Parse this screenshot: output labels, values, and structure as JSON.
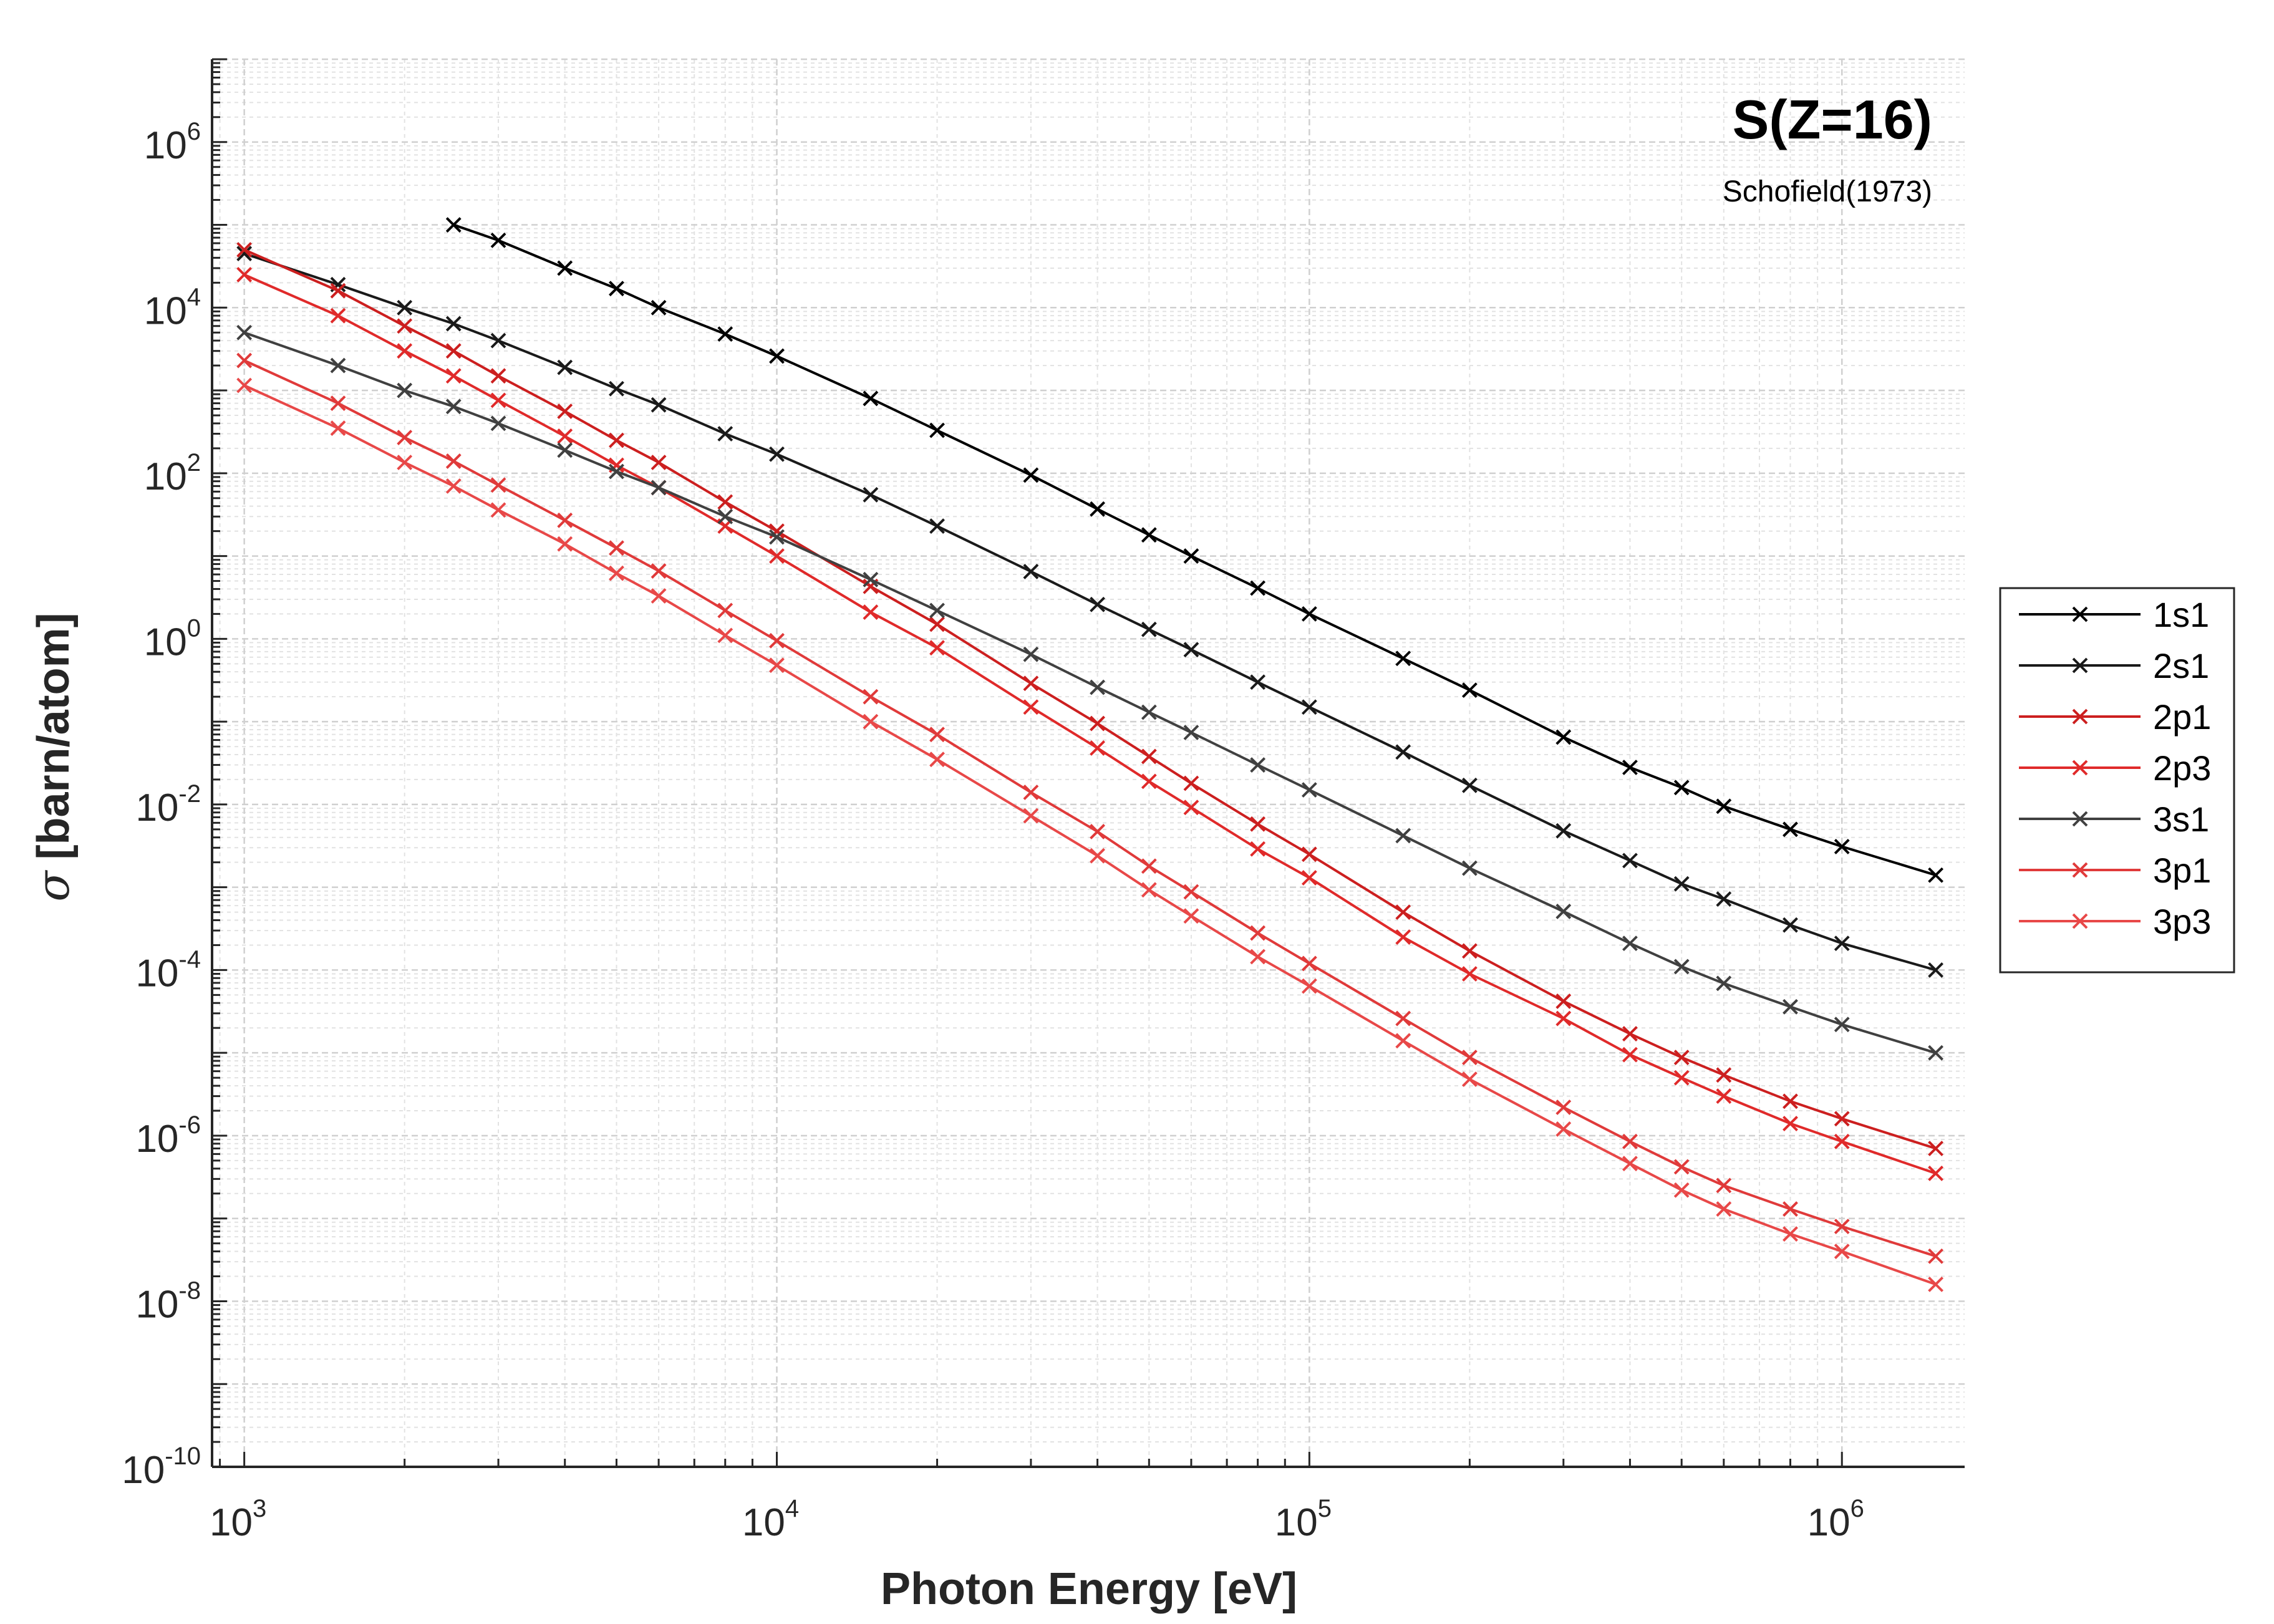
{
  "chart_data": {
    "type": "line",
    "title": "S(Z=16)",
    "subtitle": "Schofield(1973)",
    "xlabel": "Photon Energy [eV]",
    "ylabel_symbol": "σ",
    "ylabel": "[barn/atom]",
    "x_scale": "log",
    "y_scale": "log",
    "xlim": [
      870,
      1700000
    ],
    "ylim": [
      1e-10,
      10000000.0
    ],
    "grid": true,
    "marker": "x",
    "legend_position": "outside-right",
    "x_ticks": [
      {
        "base": "10",
        "exp": "3",
        "value": 1000
      },
      {
        "base": "10",
        "exp": "4",
        "value": 10000
      },
      {
        "base": "10",
        "exp": "5",
        "value": 100000
      },
      {
        "base": "10",
        "exp": "6",
        "value": 1000000
      }
    ],
    "y_ticks": [
      {
        "base": "10",
        "exp": "-10",
        "value": 1e-10
      },
      {
        "base": "10",
        "exp": "-8",
        "value": 1e-08
      },
      {
        "base": "10",
        "exp": "-6",
        "value": 1e-06
      },
      {
        "base": "10",
        "exp": "-4",
        "value": 0.0001
      },
      {
        "base": "10",
        "exp": "-2",
        "value": 0.01
      },
      {
        "base": "10",
        "exp": "0",
        "value": 1
      },
      {
        "base": "10",
        "exp": "2",
        "value": 100
      },
      {
        "base": "10",
        "exp": "4",
        "value": 10000
      },
      {
        "base": "10",
        "exp": "6",
        "value": 1000000
      }
    ],
    "series": [
      {
        "name": "1s1",
        "color": "#000000",
        "x": [
          2472,
          3000,
          4000,
          5000,
          6000,
          8000,
          10000,
          15000,
          20000,
          30000,
          40000,
          50000,
          60000,
          80000,
          100000,
          150000,
          200000,
          300000,
          400000,
          500000,
          600000,
          800000,
          1000000,
          1500000
        ],
        "y": [
          100000,
          65000,
          30000,
          17000,
          10000,
          4800,
          2600,
          800,
          330,
          95,
          37,
          18,
          10,
          4.1,
          2.0,
          0.58,
          0.24,
          0.065,
          0.028,
          0.016,
          0.0095,
          0.005,
          0.0031,
          0.0014
        ]
      },
      {
        "name": "2s1",
        "color": "#1a1a1a",
        "x": [
          1000,
          1500,
          2000,
          2472,
          3000,
          4000,
          5000,
          6000,
          8000,
          10000,
          15000,
          20000,
          30000,
          40000,
          50000,
          60000,
          80000,
          100000,
          150000,
          200000,
          300000,
          400000,
          500000,
          600000,
          800000,
          1000000,
          1500000
        ],
        "y": [
          45000,
          19000,
          10000,
          6400,
          4000,
          1900,
          1050,
          670,
          300,
          170,
          55,
          23,
          6.5,
          2.6,
          1.3,
          0.74,
          0.3,
          0.15,
          0.043,
          0.017,
          0.0048,
          0.0021,
          0.0011,
          0.00072,
          0.00035,
          0.00021,
          0.0001
        ]
      },
      {
        "name": "2p1",
        "color": "#cc1f1f",
        "x": [
          1000,
          1500,
          2000,
          2472,
          3000,
          4000,
          5000,
          6000,
          8000,
          10000,
          15000,
          20000,
          30000,
          40000,
          50000,
          60000,
          80000,
          100000,
          150000,
          200000,
          300000,
          400000,
          500000,
          600000,
          800000,
          1000000,
          1500000
        ],
        "y": [
          50000,
          16000,
          6000,
          3000,
          1500,
          560,
          250,
          135,
          45,
          20,
          4.3,
          1.5,
          0.29,
          0.095,
          0.038,
          0.018,
          0.0058,
          0.0025,
          0.0005,
          0.00017,
          4.2e-05,
          1.7e-05,
          8.8e-06,
          5.4e-06,
          2.6e-06,
          1.6e-06,
          7e-07
        ]
      },
      {
        "name": "2p3",
        "color": "#e02a2a",
        "x": [
          1000,
          1500,
          2000,
          2472,
          3000,
          4000,
          5000,
          6000,
          8000,
          10000,
          15000,
          20000,
          30000,
          40000,
          50000,
          60000,
          80000,
          100000,
          150000,
          200000,
          300000,
          400000,
          500000,
          600000,
          800000,
          1000000,
          1500000
        ],
        "y": [
          25000,
          8000,
          3000,
          1500,
          760,
          280,
          125,
          67,
          23,
          10,
          2.1,
          0.78,
          0.15,
          0.048,
          0.019,
          0.0092,
          0.0029,
          0.0013,
          0.00025,
          9e-05,
          2.6e-05,
          9.5e-06,
          5e-06,
          3e-06,
          1.4e-06,
          8.5e-07,
          3.5e-07
        ]
      },
      {
        "name": "3s1",
        "color": "#404040",
        "x": [
          1000,
          1500,
          2000,
          2472,
          3000,
          4000,
          5000,
          6000,
          8000,
          10000,
          15000,
          20000,
          30000,
          40000,
          50000,
          60000,
          80000,
          100000,
          150000,
          200000,
          300000,
          400000,
          500000,
          600000,
          800000,
          1000000,
          1500000
        ],
        "y": [
          5000,
          2000,
          1000,
          640,
          400,
          190,
          105,
          67,
          30,
          17,
          5.2,
          2.2,
          0.65,
          0.26,
          0.13,
          0.074,
          0.03,
          0.015,
          0.0042,
          0.0017,
          0.00051,
          0.00021,
          0.00011,
          6.9e-05,
          3.6e-05,
          2.2e-05,
          1e-05
        ]
      },
      {
        "name": "3p1",
        "color": "#e03a3a",
        "x": [
          1000,
          1500,
          2000,
          2472,
          3000,
          4000,
          5000,
          6000,
          8000,
          10000,
          15000,
          20000,
          30000,
          40000,
          50000,
          60000,
          80000,
          100000,
          150000,
          200000,
          300000,
          400000,
          500000,
          600000,
          800000,
          1000000,
          1500000
        ],
        "y": [
          2300,
          700,
          270,
          140,
          72,
          27,
          12.5,
          6.6,
          2.2,
          0.95,
          0.2,
          0.07,
          0.014,
          0.0047,
          0.0018,
          0.00088,
          0.00028,
          0.00012,
          2.6e-05,
          8.8e-06,
          2.2e-06,
          8.5e-07,
          4.2e-07,
          2.5e-07,
          1.3e-07,
          8e-08,
          3.5e-08
        ]
      },
      {
        "name": "3p3",
        "color": "#e84848",
        "x": [
          1000,
          1500,
          2000,
          2472,
          3000,
          4000,
          5000,
          6000,
          8000,
          10000,
          15000,
          20000,
          30000,
          40000,
          50000,
          60000,
          80000,
          100000,
          150000,
          200000,
          300000,
          400000,
          500000,
          600000,
          800000,
          1000000,
          1500000
        ],
        "y": [
          1150,
          350,
          135,
          70,
          36,
          14,
          6.2,
          3.3,
          1.1,
          0.48,
          0.1,
          0.035,
          0.0073,
          0.0024,
          0.00093,
          0.00045,
          0.000145,
          6.4e-05,
          1.4e-05,
          4.8e-06,
          1.2e-06,
          4.6e-07,
          2.2e-07,
          1.3e-07,
          6.5e-08,
          4e-08,
          1.6e-08
        ]
      }
    ]
  }
}
